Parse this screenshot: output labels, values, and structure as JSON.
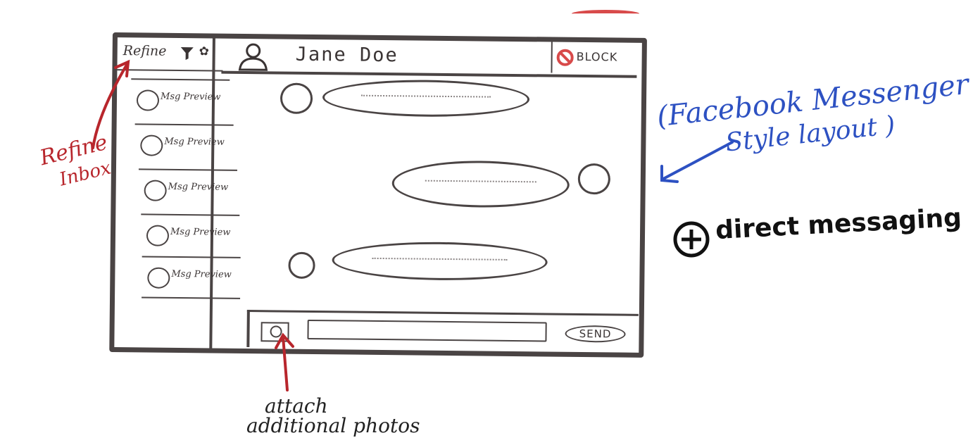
{
  "app": {
    "sidebar": {
      "refine_label": "Refine",
      "filter_icon": "filter-icon",
      "settings_icon": "gear-icon",
      "previews": [
        {
          "label": "Msg Preview"
        },
        {
          "label": "Msg Preview"
        },
        {
          "label": "Msg Preview"
        },
        {
          "label": "Msg Preview"
        },
        {
          "label": "Msg Preview"
        }
      ]
    },
    "header": {
      "avatar_icon": "person-icon",
      "contact_name": "Jane Doe",
      "block_label": "BLOCK",
      "block_icon": "block-icon"
    },
    "composer": {
      "attach_icon": "camera-icon",
      "send_label": "SEND"
    }
  },
  "annotations": {
    "refine_inbox": [
      "Refine",
      "Inbox"
    ],
    "layout_note": [
      "(Facebook Messenger",
      "Style layout )"
    ],
    "direct_messaging": "direct messaging",
    "attach_note": [
      "attach",
      "additional photos"
    ]
  },
  "colors": {
    "ink": "#4a4444",
    "annotation_red": "#b8262c",
    "annotation_blue": "#2d51c2",
    "block_red": "#d84a4a"
  }
}
